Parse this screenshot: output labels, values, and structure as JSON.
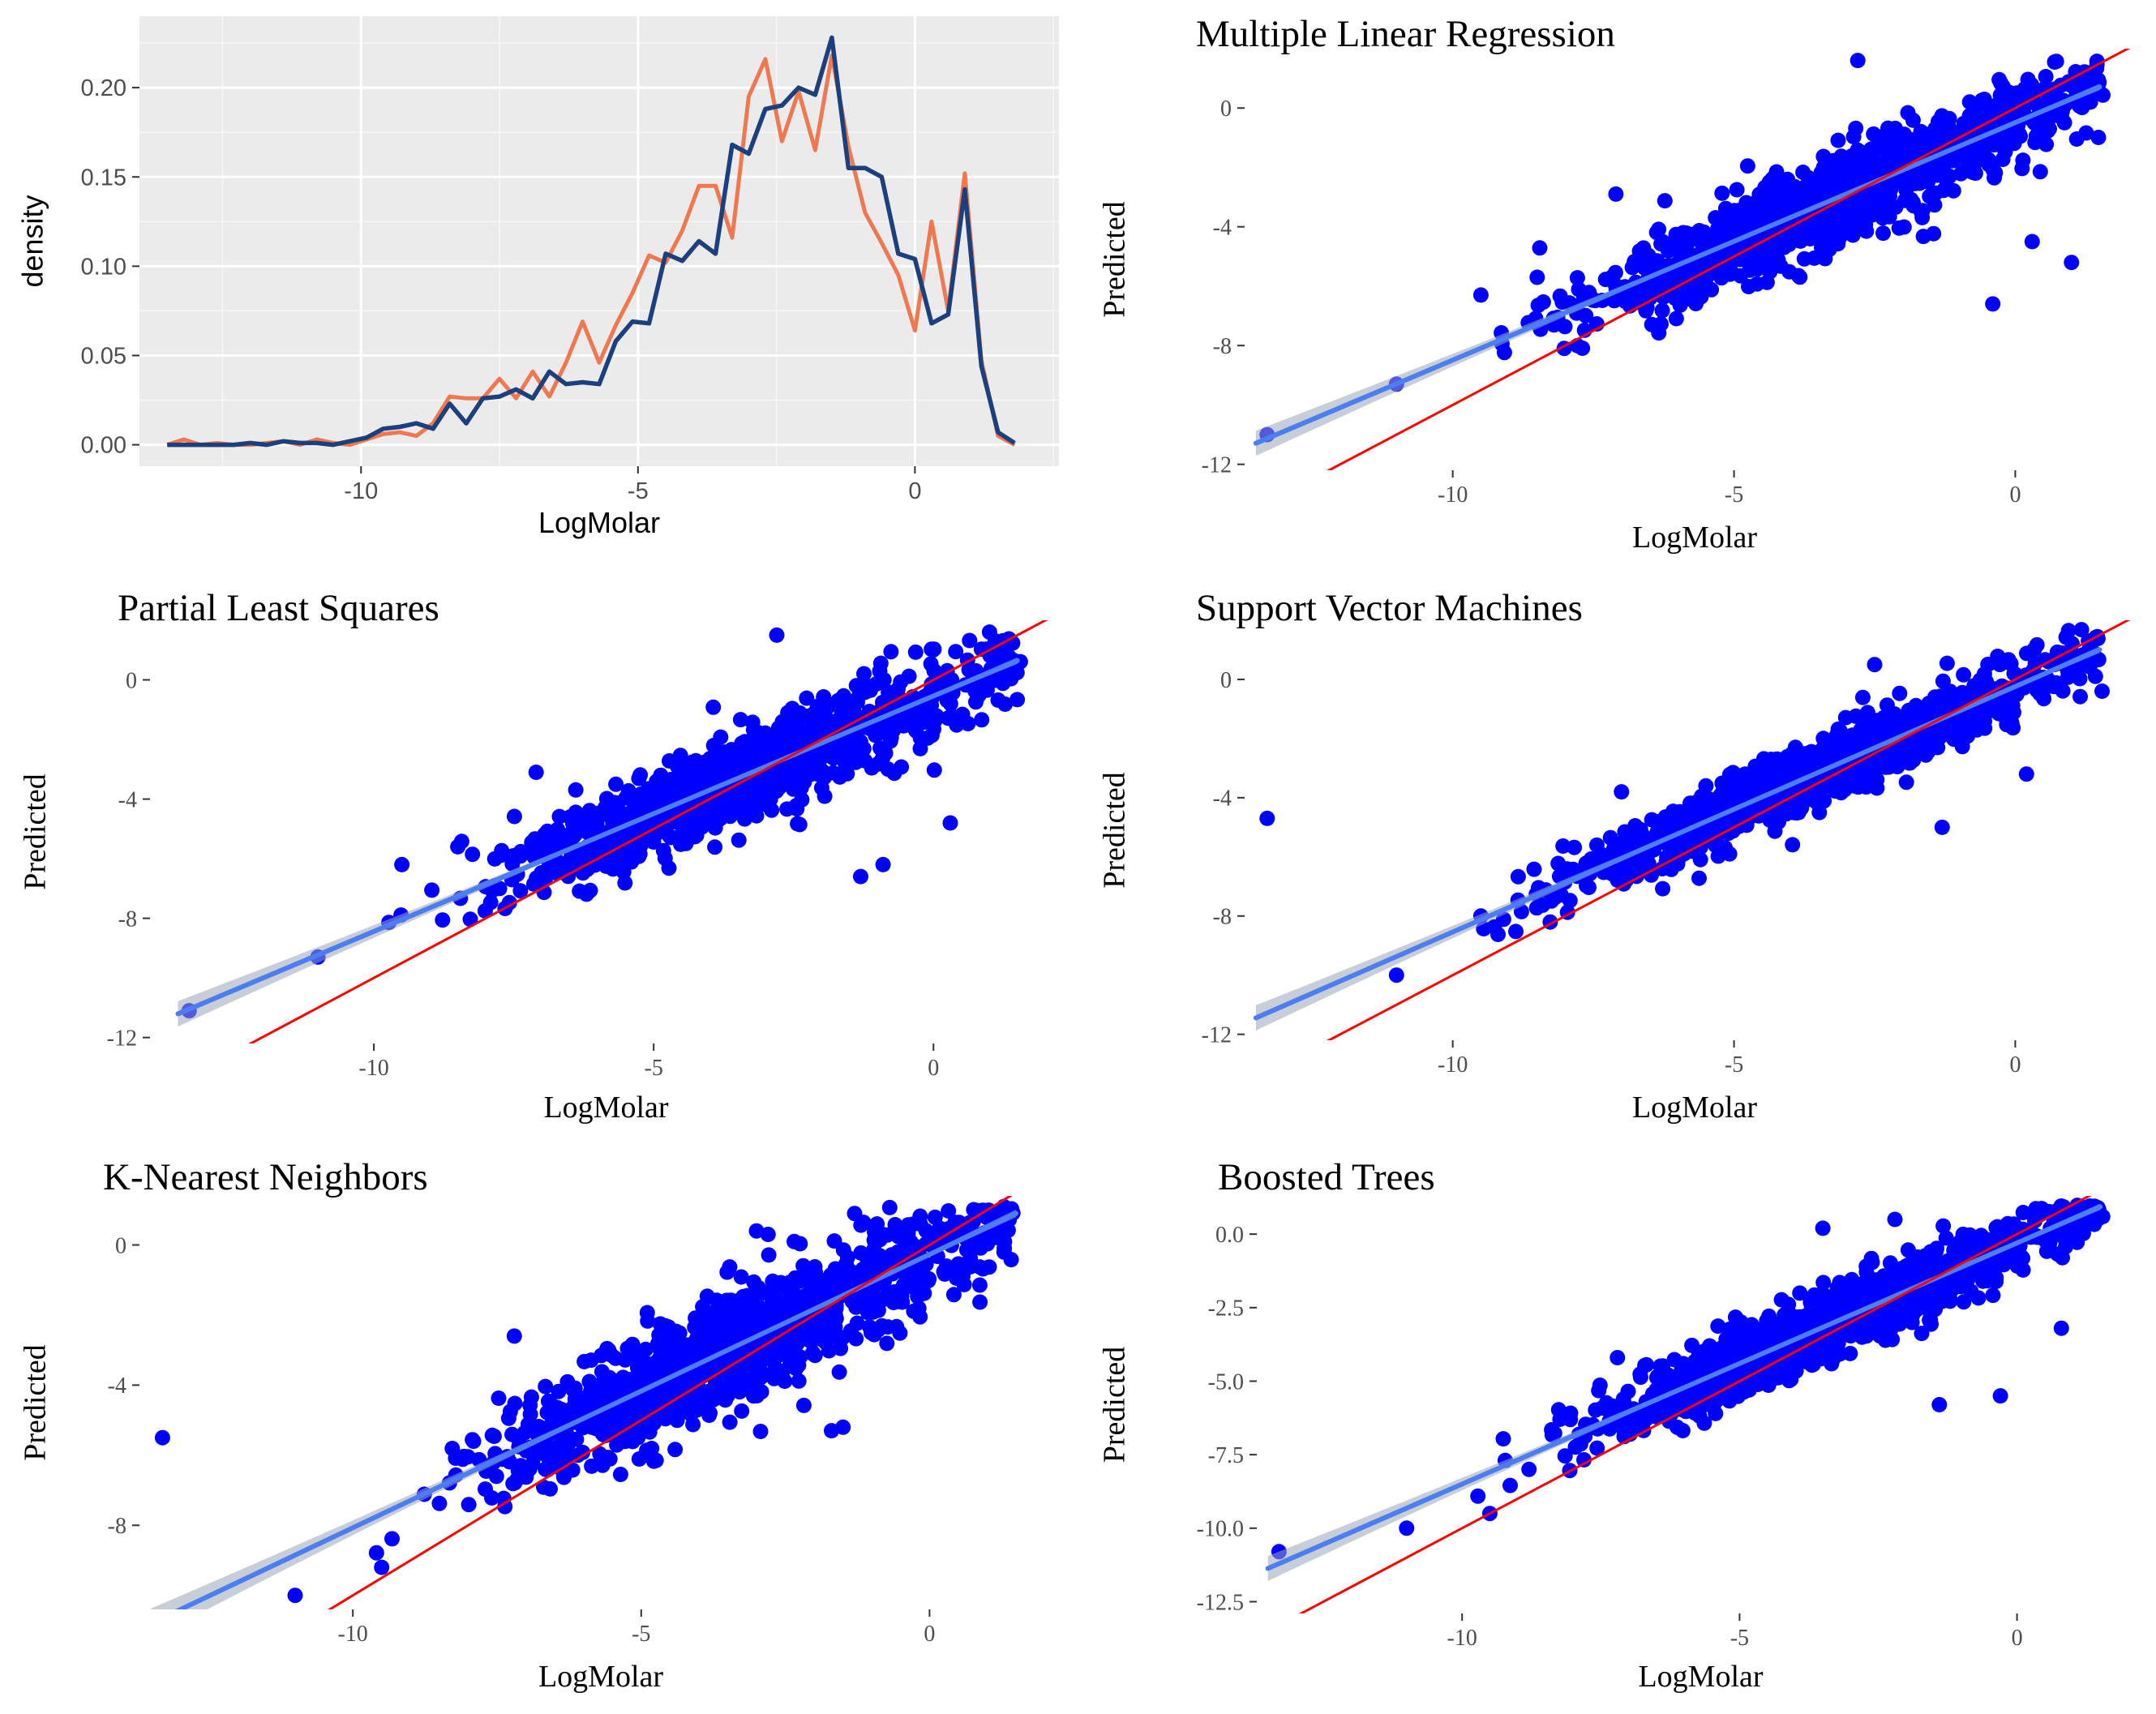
{
  "chart_data": [
    {
      "type": "line",
      "panel": "density",
      "title": "",
      "xlabel": "LogMolar",
      "ylabel": "density",
      "xlim": [
        -14.0,
        2.6
      ],
      "ylim": [
        -0.012,
        0.24
      ],
      "xticks": [
        -10,
        -5,
        0
      ],
      "xtick_labels": [
        "-10",
        "-5",
        "0"
      ],
      "yticks": [
        0.0,
        0.05,
        0.1,
        0.15,
        0.2
      ],
      "ytick_labels": [
        "0.00",
        "0.05",
        "0.10",
        "0.15",
        "0.20"
      ],
      "grid": true,
      "background": "#ebebeb",
      "legend": "none",
      "series": [
        {
          "color": "#f07850",
          "x": [
            -13.5,
            -13.2,
            -12.9,
            -12.6,
            -12.3,
            -12.0,
            -11.7,
            -11.4,
            -11.1,
            -10.8,
            -10.5,
            -10.2,
            -9.9,
            -9.6,
            -9.3,
            -9.0,
            -8.7,
            -8.4,
            -8.1,
            -7.8,
            -7.5,
            -7.2,
            -6.9,
            -6.6,
            -6.3,
            -6.0,
            -5.7,
            -5.4,
            -5.1,
            -4.8,
            -4.5,
            -4.2,
            -3.9,
            -3.6,
            -3.3,
            -3.0,
            -2.7,
            -2.4,
            -2.1,
            -1.8,
            -1.5,
            -1.2,
            -0.9,
            -0.6,
            -0.3,
            0.0,
            0.3,
            0.6,
            0.9,
            1.2,
            1.5,
            1.8
          ],
          "y": [
            0.0,
            0.003,
            0.0,
            0.001,
            0.0,
            0.0,
            0.001,
            0.002,
            0.0,
            0.003,
            0.001,
            0.0,
            0.003,
            0.006,
            0.007,
            0.005,
            0.012,
            0.027,
            0.026,
            0.026,
            0.037,
            0.026,
            0.041,
            0.027,
            0.046,
            0.069,
            0.046,
            0.067,
            0.085,
            0.106,
            0.102,
            0.12,
            0.145,
            0.145,
            0.116,
            0.195,
            0.216,
            0.17,
            0.198,
            0.165,
            0.218,
            0.167,
            0.13,
            0.113,
            0.095,
            0.064,
            0.125,
            0.075,
            0.152,
            0.047,
            0.005,
            0.0
          ]
        },
        {
          "color": "#1c3f7d",
          "x": [
            -13.5,
            -13.2,
            -12.9,
            -12.6,
            -12.3,
            -12.0,
            -11.7,
            -11.4,
            -11.1,
            -10.8,
            -10.5,
            -10.2,
            -9.9,
            -9.6,
            -9.3,
            -9.0,
            -8.7,
            -8.4,
            -8.1,
            -7.8,
            -7.5,
            -7.2,
            -6.9,
            -6.6,
            -6.3,
            -6.0,
            -5.7,
            -5.4,
            -5.1,
            -4.8,
            -4.5,
            -4.2,
            -3.9,
            -3.6,
            -3.3,
            -3.0,
            -2.7,
            -2.4,
            -2.1,
            -1.8,
            -1.5,
            -1.2,
            -0.9,
            -0.6,
            -0.3,
            0.0,
            0.3,
            0.6,
            0.9,
            1.2,
            1.5,
            1.8
          ],
          "y": [
            0.0,
            0.0,
            0.0,
            0.0,
            0.0,
            0.001,
            0.0,
            0.002,
            0.001,
            0.001,
            0.0,
            0.002,
            0.004,
            0.009,
            0.01,
            0.012,
            0.009,
            0.023,
            0.012,
            0.026,
            0.027,
            0.031,
            0.026,
            0.041,
            0.034,
            0.035,
            0.034,
            0.058,
            0.069,
            0.068,
            0.107,
            0.103,
            0.114,
            0.107,
            0.168,
            0.163,
            0.188,
            0.19,
            0.2,
            0.196,
            0.228,
            0.155,
            0.155,
            0.15,
            0.107,
            0.104,
            0.068,
            0.073,
            0.143,
            0.044,
            0.007,
            0.001
          ]
        }
      ]
    },
    {
      "type": "scatter",
      "panel": "mlr",
      "title": "Multiple Linear Regression",
      "xlabel": "LogMolar",
      "ylabel": "Predicted",
      "xlim": [
        -13.7,
        2.3
      ],
      "ylim": [
        -12.2,
        2.0
      ],
      "xticks": [
        -10,
        -5,
        0
      ],
      "xtick_labels": [
        "-10",
        "-5",
        "0"
      ],
      "yticks": [
        -12,
        -8,
        -4,
        0
      ],
      "ytick_labels": [
        "-12",
        "-8",
        "-4",
        "0"
      ],
      "grid": false,
      "points_color": "#0000ff",
      "fit": {
        "slope": 0.8,
        "intercept": -0.49,
        "x_range": [
          -13.5,
          1.5
        ],
        "color": "#4d7ef0"
      },
      "identity": {
        "slope": 1.0,
        "intercept": 0.0,
        "color": "#ff0000"
      },
      "n_points": 1100,
      "residual_sd": 0.85,
      "seed": 11,
      "notable_points": [
        [
          -13.3,
          -11.0
        ],
        [
          -11.0,
          -9.3
        ],
        [
          -9.5,
          -6.3
        ],
        [
          -8.5,
          -5.7
        ],
        [
          -7.1,
          -2.9
        ],
        [
          -2.8,
          1.6
        ],
        [
          -0.4,
          -6.6
        ],
        [
          1.0,
          -5.2
        ],
        [
          0.3,
          -4.5
        ]
      ]
    },
    {
      "type": "scatter",
      "panel": "pls",
      "title": "Partial Least Squares",
      "xlabel": "LogMolar",
      "ylabel": "Predicted",
      "xlim": [
        -14.0,
        2.3
      ],
      "ylim": [
        -12.2,
        2.0
      ],
      "xticks": [
        -10,
        -5,
        0
      ],
      "xtick_labels": [
        "-10",
        "-5",
        "0"
      ],
      "yticks": [
        -12,
        -8,
        -4,
        0
      ],
      "ytick_labels": [
        "-12",
        "-8",
        "-4",
        "0"
      ],
      "grid": false,
      "points_color": "#0000ff",
      "fit": {
        "slope": 0.79,
        "intercept": -0.54,
        "x_range": [
          -13.5,
          1.5
        ],
        "color": "#4d7ef0"
      },
      "identity": {
        "slope": 1.0,
        "intercept": 0.0,
        "color": "#ff0000"
      },
      "n_points": 1100,
      "residual_sd": 0.85,
      "seed": 23,
      "notable_points": [
        [
          -13.3,
          -11.1
        ],
        [
          -11.0,
          -9.3
        ],
        [
          -9.5,
          -6.2
        ],
        [
          -8.5,
          -5.6
        ],
        [
          -7.1,
          -3.1
        ],
        [
          -2.8,
          1.5
        ],
        [
          -1.3,
          -6.6
        ],
        [
          -0.9,
          -6.2
        ],
        [
          0.3,
          -4.8
        ]
      ]
    },
    {
      "type": "scatter",
      "panel": "svm",
      "title": "Support Vector Machines",
      "xlabel": "LogMolar",
      "ylabel": "Predicted",
      "xlim": [
        -13.7,
        2.3
      ],
      "ylim": [
        -12.2,
        2.0
      ],
      "xticks": [
        -10,
        -5,
        0
      ],
      "xtick_labels": [
        "-10",
        "-5",
        "0"
      ],
      "yticks": [
        -12,
        -8,
        -4,
        0
      ],
      "ytick_labels": [
        "-12",
        "-8",
        "-4",
        "0"
      ],
      "grid": false,
      "points_color": "#0000ff",
      "fit": {
        "slope": 0.83,
        "intercept": -0.24,
        "x_range": [
          -13.5,
          1.5
        ],
        "color": "#4d7ef0"
      },
      "identity": {
        "slope": 1.0,
        "intercept": 0.0,
        "color": "#ff0000"
      },
      "n_points": 1100,
      "residual_sd": 0.65,
      "seed": 37,
      "notable_points": [
        [
          -13.3,
          -4.7
        ],
        [
          -11.0,
          -10.0
        ],
        [
          -9.5,
          -8.0
        ],
        [
          -7.0,
          -3.8
        ],
        [
          -5.5,
          -3.6
        ],
        [
          -2.5,
          0.5
        ],
        [
          -1.3,
          -5.0
        ],
        [
          0.2,
          -3.2
        ],
        [
          1.3,
          1.3
        ]
      ]
    },
    {
      "type": "scatter",
      "panel": "knn",
      "title": "K-Nearest Neighbors",
      "xlabel": "LogMolar",
      "ylabel": "Predicted",
      "xlim": [
        -13.7,
        2.3
      ],
      "ylim": [
        -10.4,
        1.4
      ],
      "xticks": [
        -10,
        -5,
        0
      ],
      "xtick_labels": [
        "-10",
        "-5",
        "0"
      ],
      "yticks": [
        -8,
        -4,
        0
      ],
      "ytick_labels": [
        "-8",
        "-4",
        "0"
      ],
      "grid": false,
      "points_color": "#0000ff",
      "fit": {
        "slope": 0.78,
        "intercept": -0.27,
        "x_range": [
          -13.5,
          1.5
        ],
        "color": "#4d7ef0"
      },
      "identity": {
        "slope": 1.0,
        "intercept": 0.0,
        "color": "#ff0000"
      },
      "n_points": 1100,
      "residual_sd": 0.95,
      "seed": 41,
      "notable_points": [
        [
          -13.3,
          -5.5
        ],
        [
          -11.0,
          -10.0
        ],
        [
          -9.5,
          -9.2
        ],
        [
          -7.2,
          -2.6
        ],
        [
          -3.0,
          0.4
        ],
        [
          -2.8,
          0.3
        ],
        [
          -1.7,
          -5.3
        ],
        [
          -1.5,
          -5.2
        ],
        [
          1.2,
          0.6
        ]
      ]
    },
    {
      "type": "scatter",
      "panel": "boosted",
      "title": "Boosted Trees",
      "xlabel": "LogMolar",
      "ylabel": "Predicted",
      "xlim": [
        -13.7,
        2.3
      ],
      "ylim": [
        -12.9,
        1.3
      ],
      "xticks": [
        -10,
        -5,
        0
      ],
      "xtick_labels": [
        "-10",
        "-5",
        "0"
      ],
      "yticks": [
        -12.5,
        -10.0,
        -7.5,
        -5.0,
        -2.5,
        0.0
      ],
      "ytick_labels": [
        "-12.5",
        "-10.0",
        "-7.5",
        "-5.0",
        "-2.5",
        "0.0"
      ],
      "grid": false,
      "points_color": "#0000ff",
      "fit": {
        "slope": 0.82,
        "intercept": -0.3,
        "x_range": [
          -13.5,
          1.5
        ],
        "color": "#4d7ef0"
      },
      "identity": {
        "slope": 1.0,
        "intercept": 0.0,
        "color": "#ff0000"
      },
      "n_points": 1100,
      "residual_sd": 0.7,
      "seed": 53,
      "notable_points": [
        [
          -13.3,
          -10.8
        ],
        [
          -11.0,
          -10.0
        ],
        [
          -9.5,
          -9.5
        ],
        [
          -7.2,
          -4.2
        ],
        [
          -3.5,
          0.2
        ],
        [
          -2.2,
          0.5
        ],
        [
          -1.4,
          -5.8
        ],
        [
          -0.3,
          -5.5
        ],
        [
          0.8,
          -3.2
        ]
      ]
    }
  ]
}
